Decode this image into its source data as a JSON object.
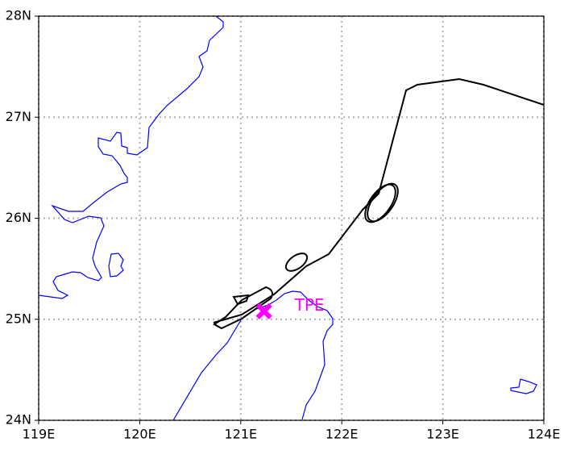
{
  "chart_data": {
    "type": "map",
    "xlim": [
      119,
      124
    ],
    "ylim": [
      24,
      28
    ],
    "xticks": [
      {
        "value": 119,
        "label": "119E"
      },
      {
        "value": 120,
        "label": "120E"
      },
      {
        "value": 121,
        "label": "121E"
      },
      {
        "value": 122,
        "label": "122E"
      },
      {
        "value": 123,
        "label": "123E"
      },
      {
        "value": 124,
        "label": "124E"
      }
    ],
    "yticks": [
      {
        "value": 24,
        "label": "24N"
      },
      {
        "value": 25,
        "label": "25N"
      },
      {
        "value": 26,
        "label": "26N"
      },
      {
        "value": 27,
        "label": "27N"
      },
      {
        "value": 28,
        "label": "28N"
      }
    ],
    "grid": true,
    "marker": {
      "label": "TPE",
      "lon": 121.23,
      "lat": 25.08,
      "color": "#ff00ff"
    }
  }
}
